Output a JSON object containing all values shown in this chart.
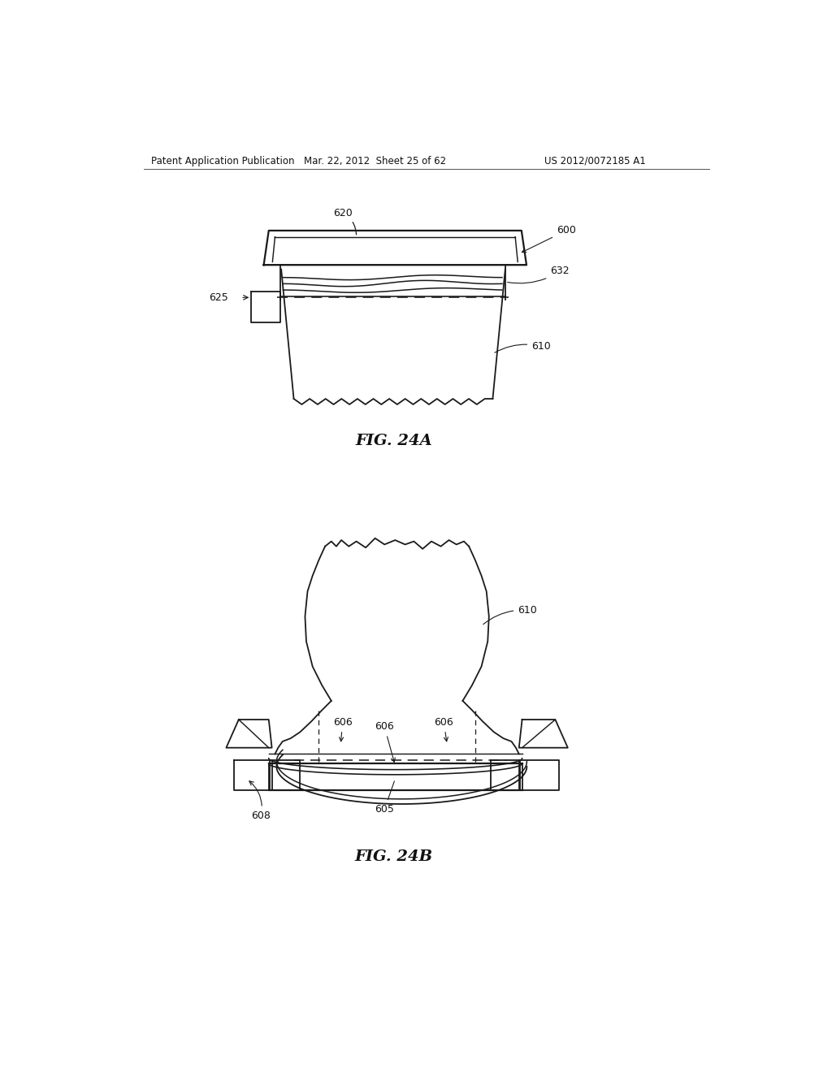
{
  "bg_color": "#ffffff",
  "line_color": "#1a1a1a",
  "header_left": "Patent Application Publication",
  "header_mid": "Mar. 22, 2012  Sheet 25 of 62",
  "header_right": "US 2012/0072185 A1",
  "fig_label_a": "FIG. 24A",
  "fig_label_b": "FIG. 24B"
}
